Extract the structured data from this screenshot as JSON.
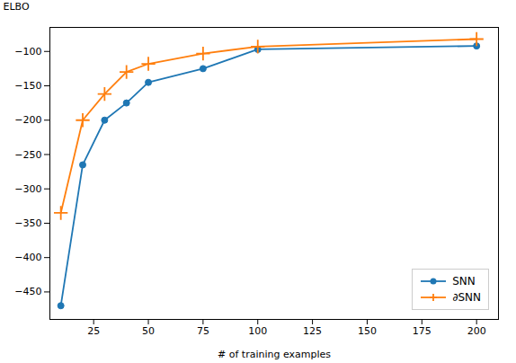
{
  "chart_data": {
    "type": "line",
    "xlabel": "# of training examples",
    "ylabel": "ELBO",
    "x": [
      10,
      20,
      30,
      40,
      50,
      75,
      100,
      200
    ],
    "series": [
      {
        "name": "SNN",
        "color": "#1f77b4",
        "marker": "circle",
        "values": [
          -470,
          -265,
          -200,
          -175,
          -145,
          -125,
          -97,
          -92
        ]
      },
      {
        "name": "∂SNN",
        "color": "#ff7f0e",
        "marker": "plus",
        "values": [
          -335,
          -200,
          -162,
          -130,
          -118,
          -103,
          -93,
          -82
        ]
      }
    ],
    "xlim": [
      5,
      210
    ],
    "ylim": [
      -490,
      -65
    ],
    "xticks": [
      25,
      50,
      75,
      100,
      125,
      150,
      175,
      200
    ],
    "yticks": [
      -100,
      -150,
      -200,
      -250,
      -300,
      -350,
      -400,
      -450
    ],
    "legend": "lower right",
    "grid": false
  }
}
